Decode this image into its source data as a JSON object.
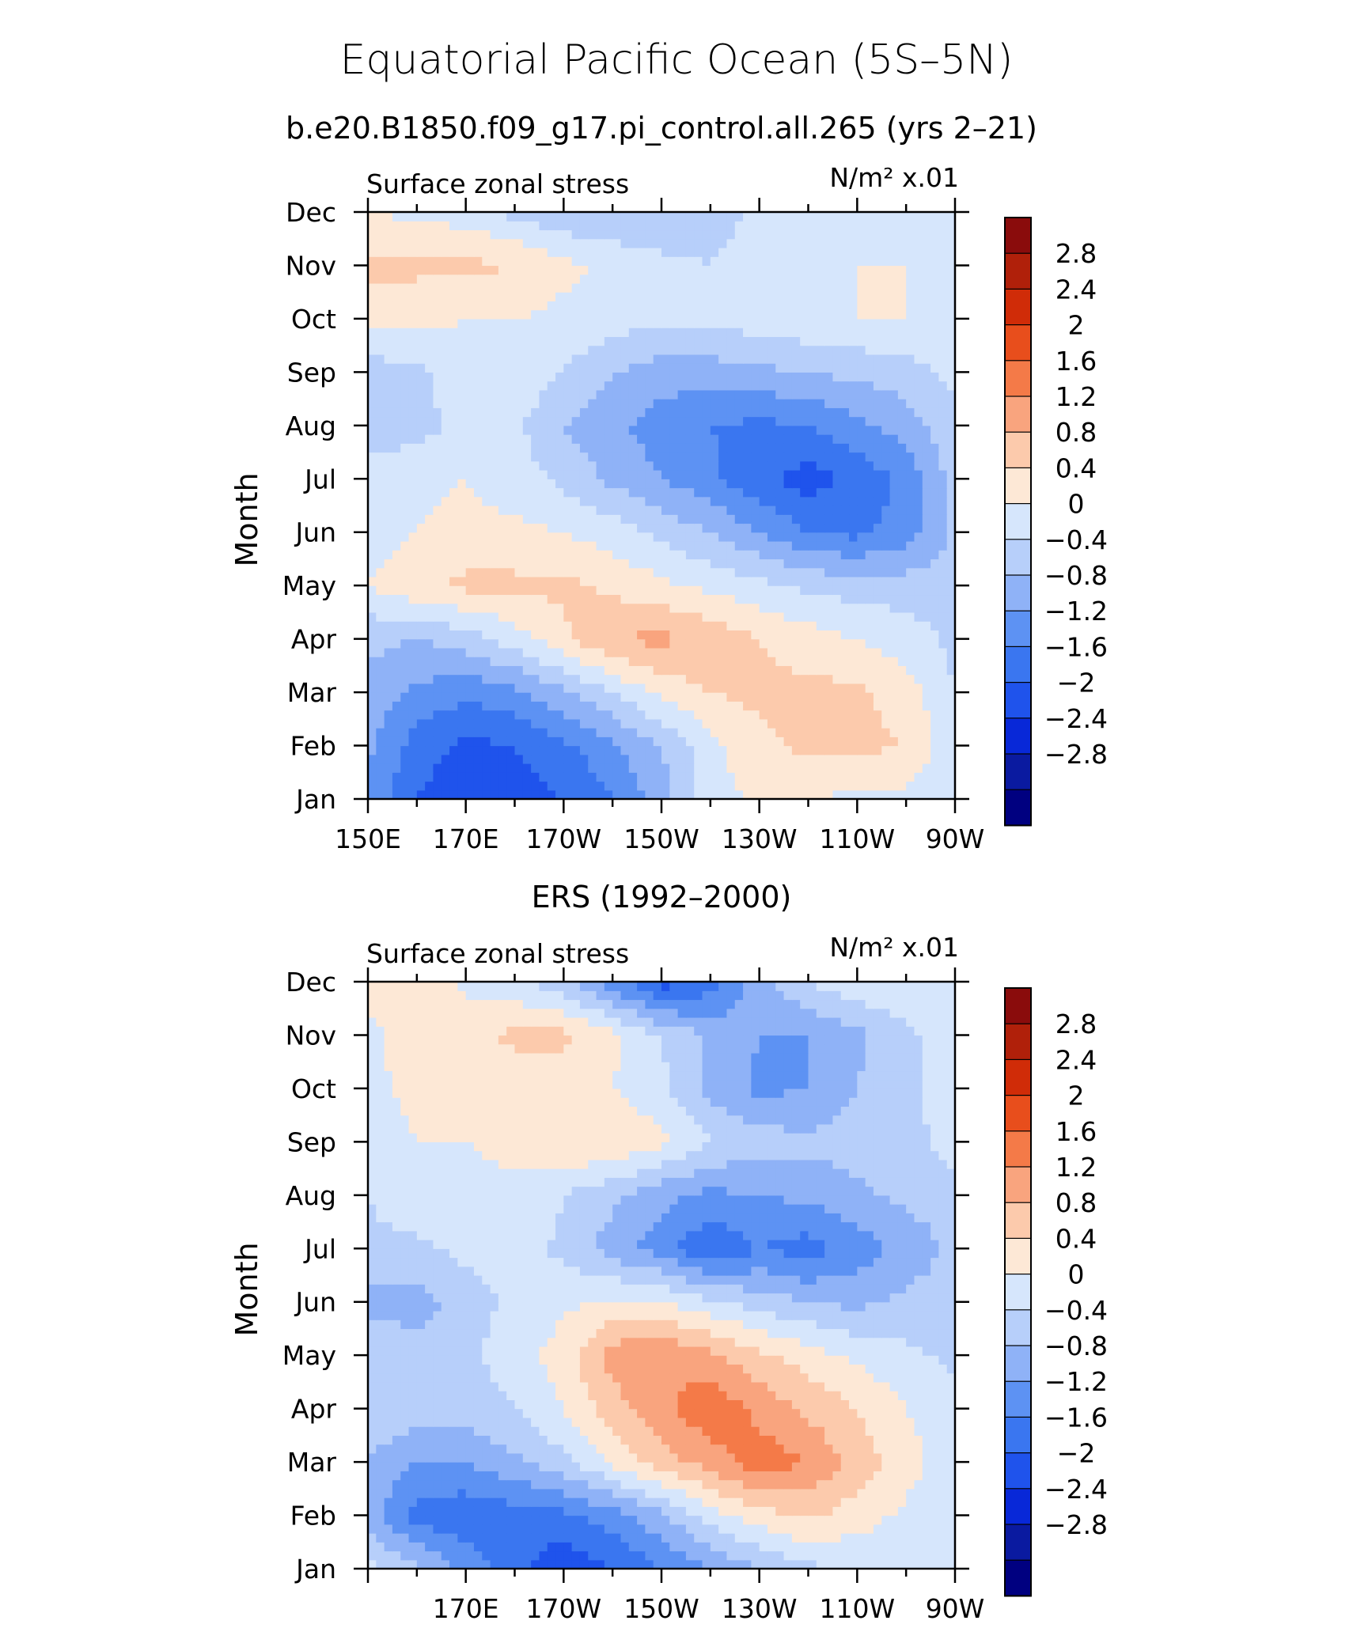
{
  "figure": {
    "title": "Equatorial Pacific Ocean (5S–5N)",
    "colors": [
      "#000080",
      "#0a1aa0",
      "#0828d8",
      "#1f53ec",
      "#3a76f0",
      "#5d92f3",
      "#8fb2f7",
      "#b7cffa",
      "#d6e6fc",
      "#fde8d6",
      "#fccaac",
      "#f9a47e",
      "#f47a48",
      "#e84e1c",
      "#d02c08",
      "#b0200a",
      "#8a0c0c"
    ]
  },
  "chart_data": [
    {
      "type": "heatmap",
      "title": "b.e20.B1850.f09_g17.pi_control.all.265 (yrs 2–21)",
      "left_label": "Surface zonal stress",
      "right_label": "N/m² x.01",
      "ylabel": "Month",
      "xlabel": "",
      "x_tick_labels": [
        "150E",
        "170E",
        "170W",
        "150W",
        "130W",
        "110W",
        "90W"
      ],
      "y_tick_labels": [
        "Jan",
        "Feb",
        "Mar",
        "Apr",
        "May",
        "Jun",
        "Jul",
        "Aug",
        "Sep",
        "Oct",
        "Nov",
        "Dec"
      ],
      "colorbar_labels": [
        "2.8",
        "2.4",
        "2",
        "1.6",
        "1.2",
        "0.8",
        "0.4",
        "0",
        "−0.4",
        "−0.8",
        "−1.2",
        "−1.6",
        "−2",
        "−2.4",
        "−2.8"
      ],
      "x_longitudes": [
        150,
        160,
        170,
        180,
        190,
        200,
        210,
        220,
        230,
        240,
        250,
        260,
        270
      ],
      "z": [
        [
          -0.9,
          -1.6,
          -1.9,
          -1.8,
          -1.6,
          -1.2,
          -0.6,
          0.2,
          0.5,
          0.4,
          0.3,
          0.3,
          0.0
        ],
        [
          -0.7,
          -1.4,
          -1.7,
          -1.6,
          -1.3,
          -0.9,
          -0.4,
          0.3,
          0.7,
          0.9,
          0.9,
          0.8,
          0.1
        ],
        [
          -0.5,
          -0.9,
          -1.1,
          -0.9,
          -0.5,
          0.0,
          0.5,
          0.8,
          0.9,
          0.9,
          0.9,
          0.6,
          0.0
        ],
        [
          -0.3,
          -0.4,
          -0.2,
          0.2,
          0.7,
          1.2,
          1.3,
          1.1,
          0.8,
          0.6,
          0.4,
          0.2,
          -0.1
        ],
        [
          0.4,
          0.7,
          0.9,
          0.9,
          0.9,
          0.7,
          0.5,
          0.3,
          0.1,
          -0.1,
          -0.2,
          -0.2,
          -0.2
        ],
        [
          0.2,
          0.4,
          0.5,
          0.5,
          0.4,
          0.2,
          -0.1,
          -0.4,
          -0.8,
          -1.2,
          -1.3,
          -1.0,
          -0.3
        ],
        [
          0.1,
          0.3,
          0.4,
          0.2,
          -0.1,
          -0.5,
          -0.8,
          -1.1,
          -1.5,
          -1.8,
          -1.5,
          -1.1,
          -0.2
        ],
        [
          -0.1,
          -0.2,
          0.2,
          0.1,
          -0.4,
          -0.7,
          -1.0,
          -1.2,
          -1.3,
          -1.2,
          -0.9,
          -0.6,
          -0.1
        ],
        [
          -0.2,
          -0.1,
          0.3,
          0.3,
          0.0,
          -0.4,
          -0.6,
          -0.6,
          -0.5,
          -0.4,
          -0.3,
          -0.2,
          0.1
        ],
        [
          0.5,
          0.5,
          0.4,
          0.4,
          0.3,
          0.2,
          0.1,
          0.1,
          0.2,
          0.3,
          0.4,
          0.4,
          0.3
        ],
        [
          0.9,
          0.9,
          0.9,
          0.8,
          0.5,
          0.3,
          0.1,
          0.0,
          0.2,
          0.3,
          0.4,
          0.4,
          0.4
        ],
        [
          0.4,
          0.3,
          0.2,
          -0.1,
          -0.3,
          -0.4,
          -0.3,
          -0.2,
          0.1,
          0.2,
          0.3,
          0.3,
          0.3
        ]
      ]
    },
    {
      "type": "heatmap",
      "title": "ERS (1992–2000)",
      "left_label": "Surface zonal stress",
      "right_label": "N/m² x.01",
      "ylabel": "Month",
      "xlabel": "",
      "x_tick_labels": [
        "170E",
        "170W",
        "150W",
        "130W",
        "110W",
        "90W"
      ],
      "y_tick_labels": [
        "Jan",
        "Feb",
        "Mar",
        "Apr",
        "May",
        "Jun",
        "Jul",
        "Aug",
        "Sep",
        "Oct",
        "Nov",
        "Dec"
      ],
      "colorbar_labels": [
        "2.8",
        "2.4",
        "2",
        "1.6",
        "1.2",
        "0.8",
        "0.4",
        "0",
        "−0.4",
        "−0.8",
        "−1.2",
        "−1.6",
        "−2",
        "−2.4",
        "−2.8"
      ],
      "x_longitudes": [
        150,
        160,
        170,
        180,
        190,
        200,
        210,
        220,
        230,
        240,
        250,
        260,
        270
      ],
      "z": [
        [
          0.1,
          -0.3,
          -0.9,
          -1.5,
          -1.9,
          -1.6,
          -1.2,
          -0.8,
          -0.4,
          -0.1,
          0.0,
          0.2,
          0.0
        ],
        [
          -0.6,
          -1.4,
          -1.5,
          -1.4,
          -1.3,
          -1.0,
          -0.5,
          0.2,
          0.6,
          0.9,
          0.6,
          0.3,
          0.1
        ],
        [
          -0.4,
          -0.8,
          -0.8,
          -0.5,
          -0.1,
          0.5,
          1.0,
          1.4,
          1.8,
          1.6,
          1.0,
          0.6,
          0.1
        ],
        [
          -0.1,
          -0.2,
          -0.2,
          0.0,
          0.4,
          1.0,
          1.5,
          1.9,
          1.5,
          1.1,
          0.8,
          0.4,
          0.1
        ],
        [
          -0.1,
          -0.2,
          -0.1,
          0.2,
          0.6,
          1.4,
          1.6,
          1.3,
          0.9,
          0.6,
          0.3,
          0.1,
          -0.1
        ],
        [
          -0.5,
          -0.6,
          -0.2,
          0.1,
          0.3,
          0.5,
          0.4,
          0.1,
          -0.2,
          -0.4,
          -0.5,
          -0.3,
          -0.1
        ],
        [
          -0.1,
          -0.1,
          0.1,
          0.2,
          -0.1,
          -0.6,
          -1.0,
          -1.6,
          -1.2,
          -1.4,
          -1.0,
          -0.7,
          -0.3
        ],
        [
          0.0,
          0.3,
          0.3,
          0.3,
          0.0,
          -0.3,
          -0.7,
          -0.9,
          -0.8,
          -0.7,
          -0.5,
          -0.3,
          -0.1
        ],
        [
          0.2,
          0.4,
          0.4,
          0.5,
          0.8,
          0.8,
          0.5,
          0.0,
          -0.2,
          -0.3,
          -0.2,
          -0.1,
          0.1
        ],
        [
          0.3,
          0.5,
          0.5,
          0.5,
          0.6,
          0.4,
          0.1,
          -0.5,
          -0.9,
          -0.8,
          -0.4,
          -0.1,
          0.2
        ],
        [
          0.3,
          0.6,
          0.7,
          0.9,
          0.9,
          0.5,
          0.0,
          -0.5,
          -0.8,
          -0.8,
          -0.5,
          -0.1,
          0.2
        ],
        [
          0.6,
          0.6,
          0.3,
          0.1,
          -0.3,
          -1.0,
          -1.8,
          -1.4,
          -0.5,
          0.0,
          0.3,
          0.4,
          0.2
        ]
      ]
    }
  ]
}
